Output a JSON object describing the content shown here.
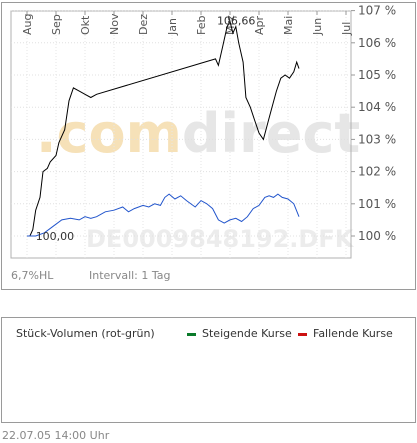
{
  "chart_data": {
    "type": "line",
    "x_ticks": [
      "Aug",
      "Sep",
      "Okt",
      "Nov",
      "Dez",
      "Jan",
      "Feb",
      "Mrz",
      "Apr",
      "Mai",
      "Jun",
      "Jul"
    ],
    "y_ticks": [
      "100 %",
      "101 %",
      "102 %",
      "103 %",
      "104 %",
      "105 %",
      "106 %",
      "107 %"
    ],
    "ylim": [
      99.6,
      107.2
    ],
    "y_unit": "%",
    "start_label": "100,00",
    "max_label": "106,66",
    "series": [
      {
        "color": "#000000",
        "points": [
          [
            0.0,
            100.0
          ],
          [
            0.1,
            100.0
          ],
          [
            0.2,
            100.2
          ],
          [
            0.3,
            100.8
          ],
          [
            0.45,
            101.2
          ],
          [
            0.55,
            102.0
          ],
          [
            0.7,
            102.1
          ],
          [
            0.8,
            102.3
          ],
          [
            1.0,
            102.5
          ],
          [
            1.1,
            102.9
          ],
          [
            1.3,
            103.3
          ],
          [
            1.45,
            104.2
          ],
          [
            1.6,
            104.6
          ],
          [
            1.8,
            104.5
          ],
          [
            2.0,
            104.4
          ],
          [
            2.2,
            104.3
          ],
          [
            2.4,
            104.4
          ],
          [
            6.5,
            105.5
          ],
          [
            6.6,
            105.3
          ],
          [
            6.75,
            105.9
          ],
          [
            6.9,
            106.5
          ],
          [
            7.0,
            106.66
          ],
          [
            7.1,
            106.3
          ],
          [
            7.2,
            106.5
          ],
          [
            7.3,
            106.0
          ],
          [
            7.45,
            105.4
          ],
          [
            7.55,
            104.3
          ],
          [
            7.7,
            104.0
          ],
          [
            7.85,
            103.6
          ],
          [
            8.0,
            103.2
          ],
          [
            8.15,
            103.0
          ],
          [
            8.3,
            103.5
          ],
          [
            8.45,
            104.0
          ],
          [
            8.6,
            104.5
          ],
          [
            8.75,
            104.9
          ],
          [
            8.9,
            105.0
          ],
          [
            9.05,
            104.9
          ],
          [
            9.2,
            105.1
          ],
          [
            9.3,
            105.4
          ],
          [
            9.38,
            105.2
          ]
        ]
      },
      {
        "color": "#2255cc",
        "points": [
          [
            0.0,
            100.0
          ],
          [
            0.3,
            100.0
          ],
          [
            0.6,
            100.1
          ],
          [
            0.9,
            100.3
          ],
          [
            1.2,
            100.5
          ],
          [
            1.5,
            100.55
          ],
          [
            1.8,
            100.5
          ],
          [
            2.0,
            100.6
          ],
          [
            2.2,
            100.55
          ],
          [
            2.4,
            100.6
          ],
          [
            2.7,
            100.75
          ],
          [
            3.0,
            100.8
          ],
          [
            3.3,
            100.9
          ],
          [
            3.5,
            100.75
          ],
          [
            3.7,
            100.85
          ],
          [
            4.0,
            100.95
          ],
          [
            4.2,
            100.9
          ],
          [
            4.4,
            101.0
          ],
          [
            4.6,
            100.95
          ],
          [
            4.75,
            101.2
          ],
          [
            4.9,
            101.3
          ],
          [
            5.1,
            101.15
          ],
          [
            5.3,
            101.25
          ],
          [
            5.5,
            101.1
          ],
          [
            5.8,
            100.9
          ],
          [
            6.0,
            101.1
          ],
          [
            6.2,
            101.0
          ],
          [
            6.4,
            100.85
          ],
          [
            6.6,
            100.5
          ],
          [
            6.8,
            100.4
          ],
          [
            7.0,
            100.5
          ],
          [
            7.2,
            100.55
          ],
          [
            7.4,
            100.45
          ],
          [
            7.6,
            100.6
          ],
          [
            7.8,
            100.85
          ],
          [
            8.0,
            100.95
          ],
          [
            8.2,
            101.2
          ],
          [
            8.35,
            101.25
          ],
          [
            8.5,
            101.2
          ],
          [
            8.65,
            101.3
          ],
          [
            8.8,
            101.2
          ],
          [
            9.0,
            101.15
          ],
          [
            9.2,
            101.0
          ],
          [
            9.38,
            100.6
          ]
        ]
      }
    ]
  },
  "watermark": {
    "brand_dot": ".",
    "brand_com": "com",
    "brand_direct": "direct",
    "symbol": "DE0009848192.DFK"
  },
  "footer": {
    "range": "6,7%HL",
    "interval": "Intervall: 1 Tag"
  },
  "volume": {
    "title": "Stück-Volumen (rot-grün)",
    "rising": "Steigende Kurse",
    "falling": "Fallende Kurse",
    "rising_color": "#0a7a2a",
    "falling_color": "#cc1111"
  },
  "timestamp": "22.07.05   14:00 Uhr"
}
